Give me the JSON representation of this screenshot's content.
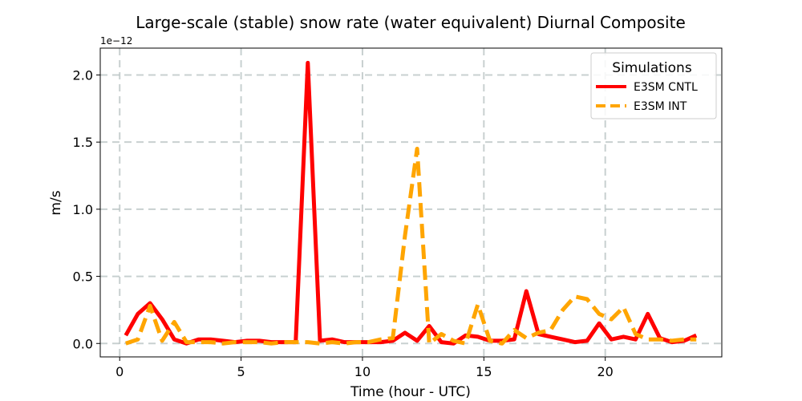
{
  "chart_data": {
    "type": "line",
    "title": "Large-scale (stable) snow rate (water equivalent) Diurnal Composite",
    "xlabel": "Time (hour - UTC)",
    "ylabel": "m/s",
    "y_offset_label": "1e−12",
    "xlim": [
      -0.8,
      24.8
    ],
    "ylim": [
      -0.1,
      2.2
    ],
    "xticks": [
      0,
      5,
      10,
      15,
      20
    ],
    "yticks": [
      0.0,
      0.5,
      1.0,
      1.5,
      2.0
    ],
    "xtick_labels": [
      "0",
      "5",
      "10",
      "15",
      "20"
    ],
    "ytick_labels": [
      "0.0",
      "0.5",
      "1.0",
      "1.5",
      "2.0"
    ],
    "grid": true,
    "legend": {
      "title": "Simulations",
      "placement": "top-right"
    },
    "x": [
      0.25,
      0.75,
      1.25,
      1.75,
      2.25,
      2.75,
      3.25,
      3.75,
      4.25,
      4.75,
      5.25,
      5.75,
      6.25,
      6.75,
      7.25,
      7.75,
      8.25,
      8.75,
      9.25,
      9.75,
      10.25,
      10.75,
      11.25,
      11.75,
      12.25,
      12.75,
      13.25,
      13.75,
      14.25,
      14.75,
      15.25,
      15.75,
      16.25,
      16.75,
      17.25,
      17.75,
      18.25,
      18.75,
      19.25,
      19.75,
      20.25,
      20.75,
      21.25,
      21.75,
      22.25,
      22.75,
      23.25,
      23.75
    ],
    "series": [
      {
        "name": "E3SM CNTL",
        "color": "#ff0000",
        "style": "solid",
        "values": [
          0.06,
          0.22,
          0.3,
          0.18,
          0.03,
          0.0,
          0.03,
          0.03,
          0.02,
          0.01,
          0.02,
          0.02,
          0.01,
          0.01,
          0.01,
          2.09,
          0.02,
          0.03,
          0.01,
          0.01,
          0.01,
          0.01,
          0.02,
          0.08,
          0.02,
          0.13,
          0.01,
          0.0,
          0.06,
          0.05,
          0.02,
          0.02,
          0.03,
          0.39,
          0.07,
          0.05,
          0.03,
          0.01,
          0.02,
          0.15,
          0.03,
          0.05,
          0.03,
          0.22,
          0.04,
          0.01,
          0.02,
          0.06
        ]
      },
      {
        "name": "E3SM INT",
        "color": "#ffa500",
        "style": "dashed",
        "values": [
          0.0,
          0.03,
          0.28,
          0.02,
          0.16,
          0.01,
          0.01,
          0.01,
          0.0,
          0.01,
          0.01,
          0.01,
          0.0,
          0.01,
          0.01,
          0.01,
          0.0,
          0.01,
          0.0,
          0.01,
          0.01,
          0.03,
          0.04,
          0.8,
          1.45,
          0.0,
          0.07,
          0.02,
          0.0,
          0.29,
          0.02,
          0.0,
          0.1,
          0.04,
          0.08,
          0.1,
          0.25,
          0.35,
          0.33,
          0.22,
          0.18,
          0.27,
          0.07,
          0.03,
          0.03,
          0.02,
          0.03,
          0.03
        ]
      }
    ]
  }
}
